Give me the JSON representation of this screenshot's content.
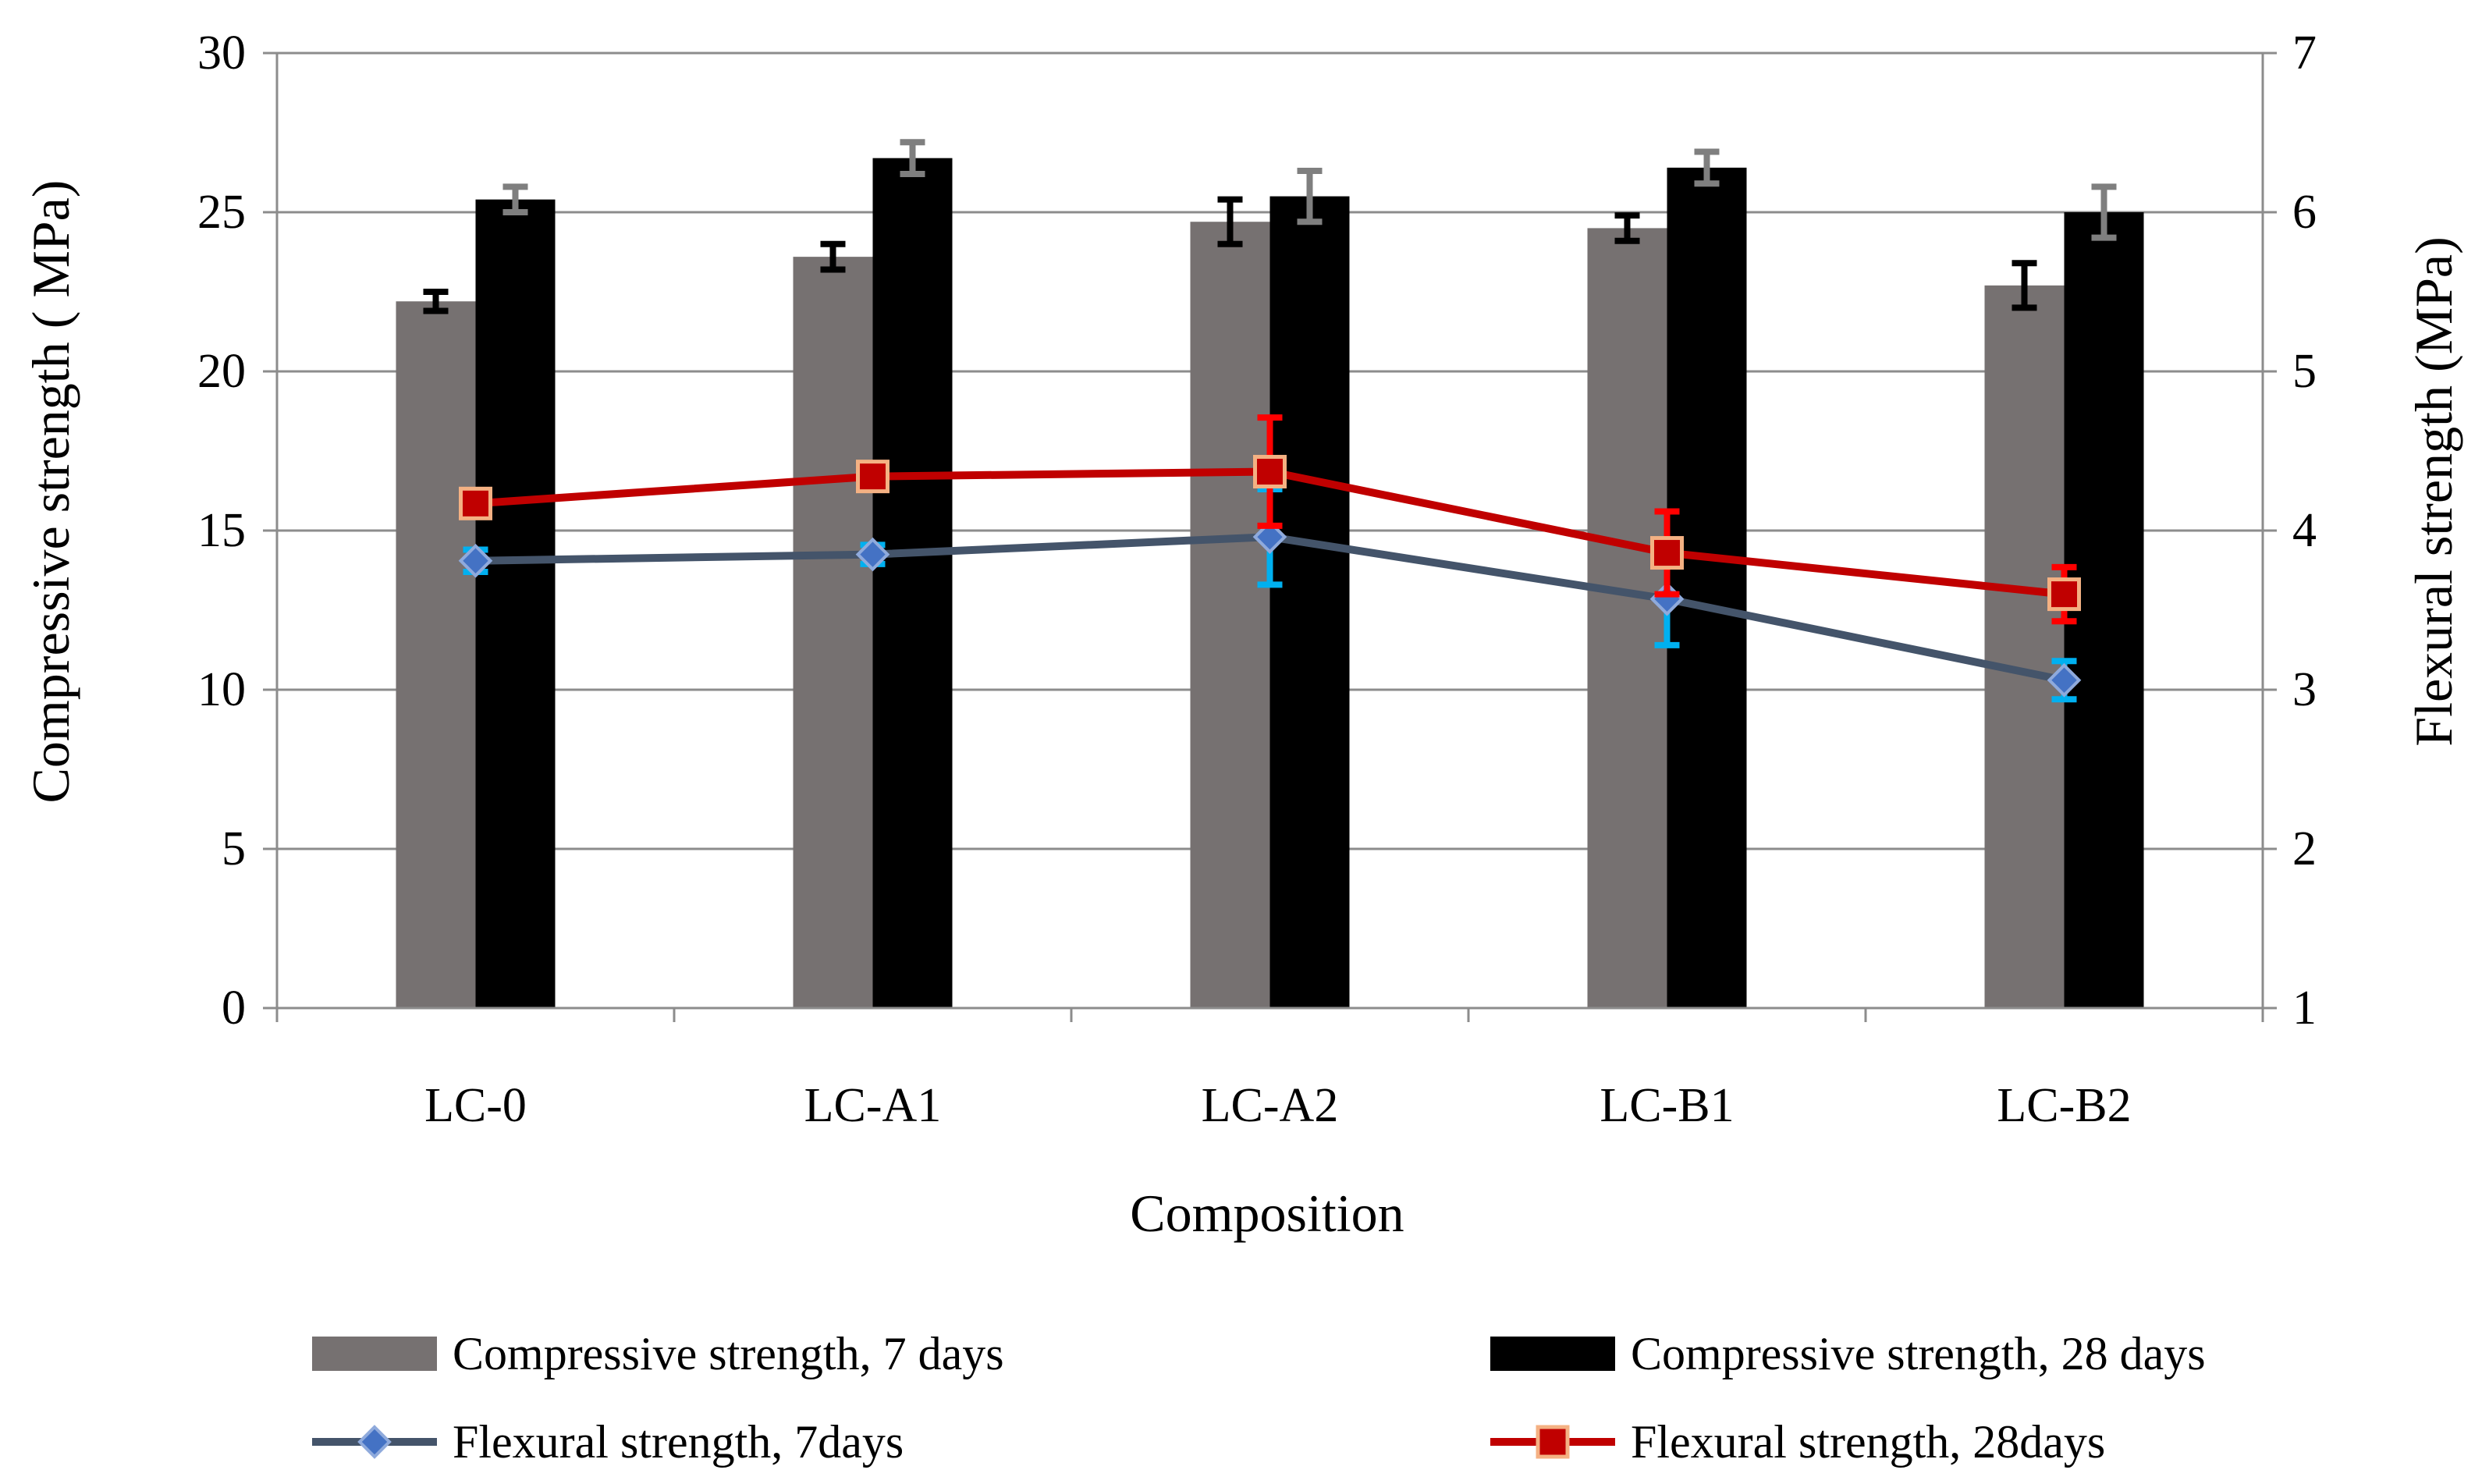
{
  "chart_data": {
    "type": "bar",
    "title": "",
    "xlabel": "Composition",
    "ylabel": "Compressive strength ( MPa)",
    "y2label": "Flexural strength (MPa)",
    "ylim": [
      0,
      30
    ],
    "y2lim": [
      1,
      7
    ],
    "yticks": [
      "0",
      "5",
      "10",
      "15",
      "20",
      "25",
      "30"
    ],
    "y2ticks": [
      "1",
      "2",
      "3",
      "4",
      "5",
      "6",
      "7"
    ],
    "grid": true,
    "legend_position": "bottom",
    "categories": [
      "LC-0",
      "LC-A1",
      "LC-A2",
      "LC-B1",
      "LC-B2"
    ],
    "bar_series": [
      {
        "name": "Compressive strength, 7 days",
        "color": "#767171",
        "error_color": "#000000",
        "values": [
          22.2,
          23.6,
          24.7,
          24.5,
          22.7
        ],
        "errors": [
          0.3,
          0.4,
          0.7,
          0.4,
          0.7
        ]
      },
      {
        "name": "Compressive strength, 28 days",
        "color": "#000000",
        "error_color": "#7f7f7f",
        "values": [
          25.4,
          26.7,
          25.5,
          26.4,
          25.0
        ],
        "errors": [
          0.4,
          0.5,
          0.8,
          0.5,
          0.8
        ]
      }
    ],
    "line_series": [
      {
        "name": "Flexural strength, 7days",
        "color": "#44546a",
        "marker": "diamond",
        "marker_color": "#4472c4",
        "error_color": "#00b0f0",
        "axis": "right",
        "values": [
          3.81,
          3.85,
          3.96,
          3.57,
          3.06
        ],
        "errors": [
          0.07,
          0.06,
          0.3,
          0.29,
          0.12
        ]
      },
      {
        "name": "Flexural strength, 28days",
        "color": "#c00000",
        "marker": "square",
        "marker_color": "#c00000",
        "marker_edge": "#f4b183",
        "error_color": "#ff0000",
        "axis": "right",
        "values": [
          4.17,
          4.34,
          4.37,
          3.86,
          3.6
        ],
        "errors": [
          0.08,
          0.07,
          0.34,
          0.26,
          0.17
        ]
      }
    ]
  }
}
